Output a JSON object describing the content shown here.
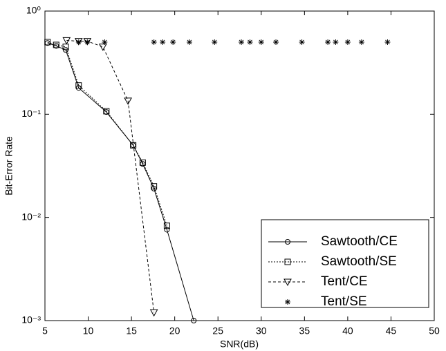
{
  "chart_data": {
    "type": "line",
    "xlabel": "SNR(dB)",
    "ylabel": "Bit-Error Rate",
    "xlim": [
      5,
      50
    ],
    "xticks": [
      5,
      10,
      15,
      20,
      25,
      30,
      35,
      40,
      45,
      50
    ],
    "ylim": [
      0.001,
      1
    ],
    "ylog": true,
    "yticks": [
      {
        "value": 1,
        "label": "10⁰"
      },
      {
        "value": 0.1,
        "label": "10⁻¹"
      },
      {
        "value": 0.01,
        "label": "10⁻²"
      },
      {
        "value": 0.001,
        "label": "10⁻³"
      }
    ],
    "legend": "lower right",
    "series": [
      {
        "name": "Sawtooth/CE",
        "color": "#000000",
        "linestyle": "solid",
        "marker": "circle",
        "x": [
          5.3,
          6.3,
          7.4,
          8.9,
          12.1,
          15.2,
          16.3,
          17.6,
          19.1,
          22.2
        ],
        "values": [
          0.49,
          0.46,
          0.42,
          0.18,
          0.105,
          0.05,
          0.033,
          0.019,
          0.0076,
          0.001
        ]
      },
      {
        "name": "Sawtooth/SE",
        "color": "#000000",
        "linestyle": "dotted",
        "marker": "square",
        "x": [
          5.3,
          6.3,
          7.4,
          8.9,
          12.1,
          15.2,
          16.3,
          17.6,
          19.1
        ],
        "values": [
          0.5,
          0.47,
          0.45,
          0.19,
          0.107,
          0.05,
          0.034,
          0.02,
          0.0083
        ]
      },
      {
        "name": "Tent/CE",
        "color": "#000000",
        "linestyle": "dashed",
        "marker": "triangle",
        "x": [
          7.5,
          8.9,
          9.9,
          11.7,
          14.6,
          17.6
        ],
        "values": [
          0.52,
          0.51,
          0.51,
          0.45,
          0.135,
          0.0012
        ]
      },
      {
        "name": "Tent/SE",
        "color": "#000000",
        "linestyle": "none",
        "marker": "star",
        "x": [
          8.9,
          9.9,
          11.9,
          17.6,
          18.6,
          19.8,
          21.7,
          24.6,
          27.7,
          28.7,
          30,
          31.7,
          34.7,
          37.7,
          38.6,
          40,
          41.6,
          44.6
        ],
        "values": [
          0.5,
          0.5,
          0.5,
          0.5,
          0.5,
          0.5,
          0.5,
          0.5,
          0.5,
          0.5,
          0.5,
          0.5,
          0.5,
          0.5,
          0.5,
          0.5,
          0.5,
          0.5
        ]
      }
    ]
  }
}
